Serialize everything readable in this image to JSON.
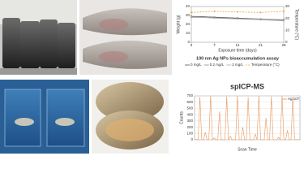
{
  "chart_data": [
    {
      "type": "line",
      "title": "100 nm Ag NPs bioaccumulation assay",
      "x_label": "Exposure time (days)",
      "y_label": "Weight (g)",
      "y2_label": "Temperature (°C)",
      "x": [
        0,
        7,
        14,
        21,
        28
      ],
      "xlim": [
        0,
        28
      ],
      "xticks": [
        0,
        7,
        14,
        21,
        28
      ],
      "ylim": [
        0,
        40
      ],
      "yticks": [
        0,
        10,
        20,
        30,
        40
      ],
      "y2lim": [
        0,
        30
      ],
      "y2ticks": [
        0,
        10,
        20,
        30
      ],
      "grid": false,
      "legend": "bottom",
      "series": [
        {
          "name": "0 mg/L",
          "color": "#555555",
          "dash": false,
          "values": [
            29,
            28,
            27,
            26,
            25
          ]
        },
        {
          "name": "0.2 mg/L",
          "color": "#8a8a8a",
          "dash": false,
          "values": [
            28,
            27.5,
            26.5,
            26,
            24.5
          ]
        },
        {
          "name": "2 mg/L",
          "color": "#b0b0b0",
          "dash": false,
          "values": [
            28.5,
            27,
            26,
            25,
            24
          ]
        },
        {
          "name": "Temperature (°C)",
          "color": "#f0a030",
          "dash": true,
          "axis": "y2",
          "values": [
            25,
            26,
            25.5,
            25,
            26
          ]
        }
      ]
    },
    {
      "type": "line",
      "title": "spICP-MS",
      "x_label": "Scan Time",
      "y_label": "Counts",
      "x": [
        0,
        1,
        2,
        3,
        4,
        5,
        6,
        7,
        8,
        9,
        10,
        11,
        12,
        13,
        14,
        15,
        16,
        17,
        18,
        19,
        20,
        21,
        22,
        23,
        24,
        25,
        26,
        27,
        28,
        29,
        30,
        31,
        32,
        33,
        34,
        35,
        36,
        37,
        38,
        39,
        40,
        41,
        42,
        43,
        44,
        45,
        46,
        47,
        48,
        49,
        50,
        51,
        52,
        53,
        54,
        55,
        56,
        57,
        58,
        59
      ],
      "xlim": [
        0,
        59
      ],
      "ylim": [
        0,
        700
      ],
      "yticks": [
        0,
        100,
        200,
        300,
        400,
        500,
        600,
        700
      ],
      "grid": true,
      "legend": "upper right",
      "series": [
        {
          "name": "Ag 107",
          "color": "#e8965a",
          "dash": false,
          "values": [
            0,
            5,
            0,
            680,
            0,
            0,
            120,
            0,
            0,
            700,
            0,
            30,
            0,
            0,
            450,
            0,
            0,
            0,
            690,
            0,
            60,
            0,
            0,
            0,
            700,
            0,
            0,
            200,
            0,
            0,
            680,
            0,
            0,
            0,
            90,
            0,
            700,
            0,
            0,
            0,
            350,
            0,
            0,
            690,
            0,
            0,
            0,
            40,
            0,
            700,
            0,
            0,
            150,
            0,
            0,
            680,
            0,
            0,
            0,
            10
          ]
        }
      ]
    }
  ]
}
